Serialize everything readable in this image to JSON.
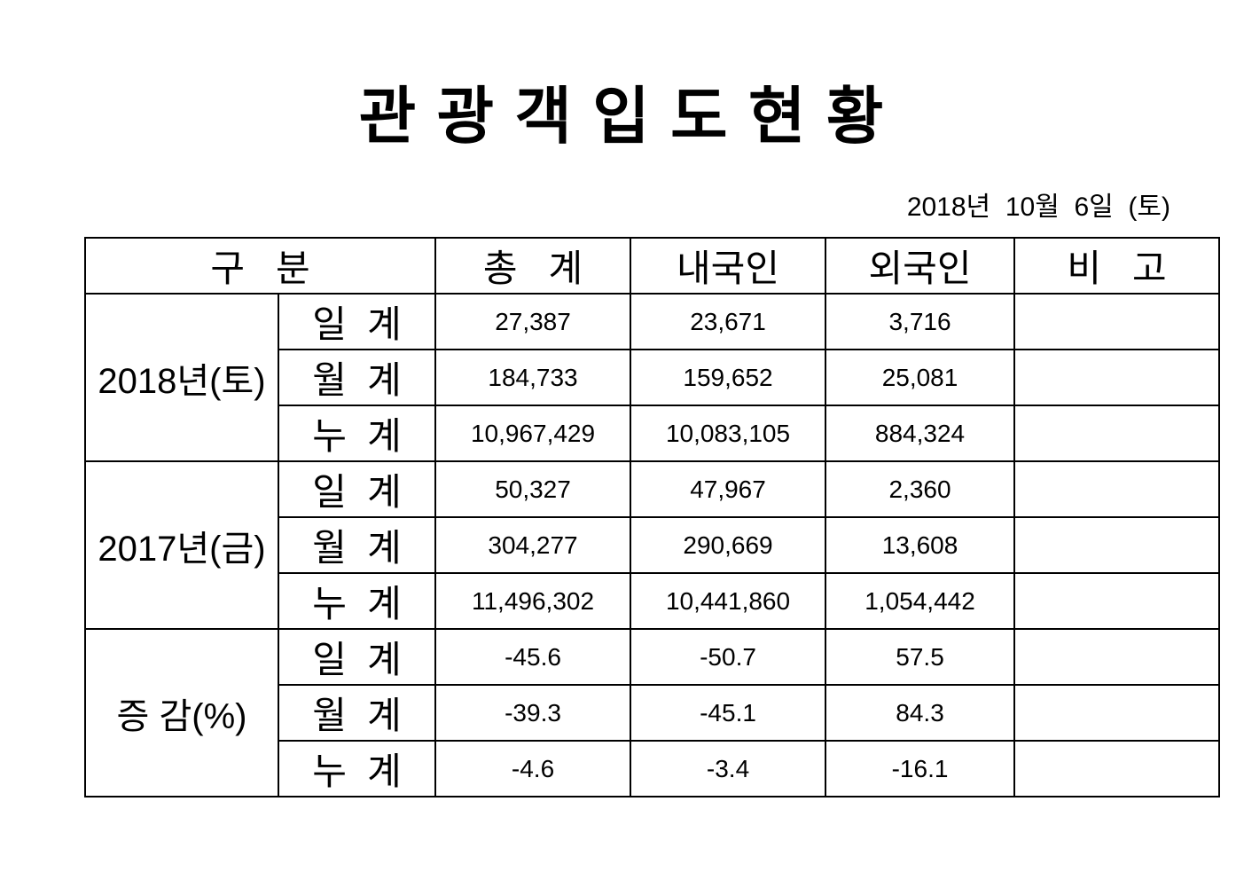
{
  "page": {
    "title": "관 광 객 입 도 현 황",
    "date": "2018년  10월  6일  (토)"
  },
  "table": {
    "headers": {
      "category": "구   분",
      "total": "총   계",
      "domestic": "내국인",
      "foreign": "외국인",
      "remarks": "비   고"
    },
    "groups": [
      {
        "label": "2018년(토)",
        "rows": [
          {
            "label": "일  계",
            "total": "27,387",
            "domestic": "23,671",
            "foreign": "3,716",
            "remarks": ""
          },
          {
            "label": "월  계",
            "total": "184,733",
            "domestic": "159,652",
            "foreign": "25,081",
            "remarks": ""
          },
          {
            "label": "누  계",
            "total": "10,967,429",
            "domestic": "10,083,105",
            "foreign": "884,324",
            "remarks": ""
          }
        ]
      },
      {
        "label": "2017년(금)",
        "rows": [
          {
            "label": "일  계",
            "total": "50,327",
            "domestic": "47,967",
            "foreign": "2,360",
            "remarks": ""
          },
          {
            "label": "월  계",
            "total": "304,277",
            "domestic": "290,669",
            "foreign": "13,608",
            "remarks": ""
          },
          {
            "label": "누  계",
            "total": "11,496,302",
            "domestic": "10,441,860",
            "foreign": "1,054,442",
            "remarks": ""
          }
        ]
      },
      {
        "label": "증 감(%)",
        "rows": [
          {
            "label": "일  계",
            "total": "-45.6",
            "domestic": "-50.7",
            "foreign": "57.5",
            "remarks": ""
          },
          {
            "label": "월  계",
            "total": "-39.3",
            "domestic": "-45.1",
            "foreign": "84.3",
            "remarks": ""
          },
          {
            "label": "누  계",
            "total": "-4.6",
            "domestic": "-3.4",
            "foreign": "-16.1",
            "remarks": ""
          }
        ]
      }
    ]
  }
}
